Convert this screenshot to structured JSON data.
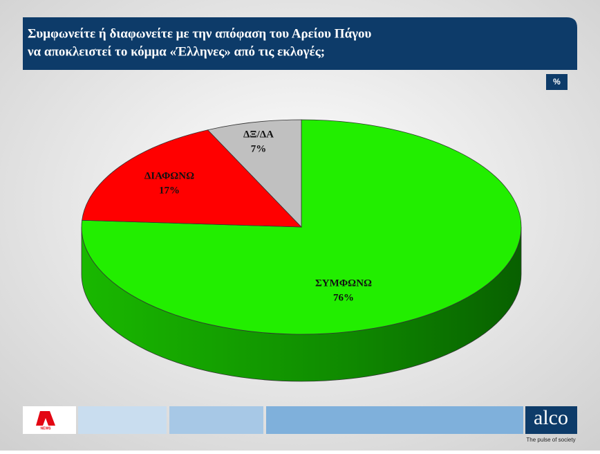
{
  "chart_data": {
    "type": "pie",
    "title": [
      "Συμφωνείτε ή διαφωνείτε με την απόφαση του Αρείου Πάγου",
      "να αποκλειστεί το κόμμα «Έλληνες» από τις εκλογές;"
    ],
    "unit": "%",
    "categories": [
      "ΣΥΜΦΩΝΩ",
      "ΔΙΑΦΩΝΩ",
      "ΔΞ/ΔΑ"
    ],
    "values": [
      76,
      17,
      7
    ],
    "value_labels": [
      "76%",
      "17%",
      "7%"
    ],
    "colors": [
      "#22ee00",
      "#ff0000",
      "#c0c0c0"
    ]
  },
  "branding": {
    "channel_logo": "NEWS",
    "company": "alco",
    "slogan": "The pulse of society"
  }
}
